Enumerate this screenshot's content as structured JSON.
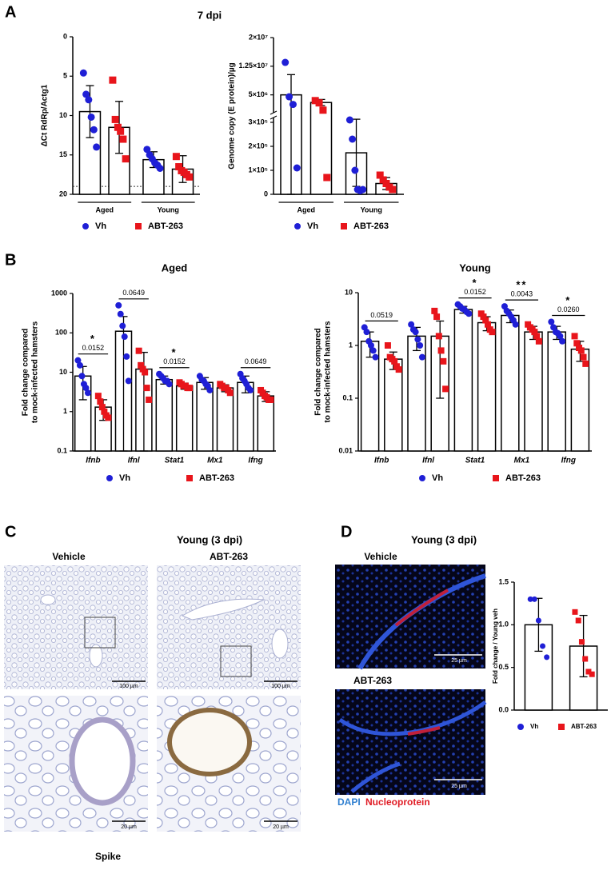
{
  "panels": {
    "A": {
      "label": "A",
      "title": "7 dpi"
    },
    "B": {
      "label": "B"
    },
    "C": {
      "label": "C",
      "title": "Young (3 dpi)",
      "columns": [
        "Vehicle",
        "ABT-263"
      ],
      "scale_bars": [
        "100 µm",
        "100 µm",
        "20 µm",
        "20 µm"
      ],
      "caption": "Spike"
    },
    "D": {
      "label": "D",
      "title": "Young (3 dpi)",
      "rows": [
        "Vehicle",
        "ABT-263"
      ],
      "scale_bars": [
        "25 µm",
        "25 µm"
      ],
      "stains": [
        "DAPI",
        "Nucleoprotein"
      ]
    }
  },
  "chart_data": [
    {
      "type": "bar",
      "ylabel": "ΔCt RdRp/Actg1",
      "categories": [
        "Aged",
        "Young"
      ],
      "category_style": "bracket",
      "ylim": [
        0,
        20
      ],
      "y_inverted": true,
      "yticks": [
        0,
        5,
        10,
        15,
        20
      ],
      "reference_line": 19,
      "series": [
        {
          "name": "Vh",
          "color": "#1f1fd6",
          "marker": "circle",
          "values": [
            9.5,
            15.6
          ],
          "errors": [
            3.3,
            1.0
          ],
          "points": [
            [
              4.6,
              7.3,
              8.0,
              10.2,
              11.8,
              14.0
            ],
            [
              14.3,
              15.0,
              15.5,
              16.0,
              16.3,
              16.7
            ]
          ]
        },
        {
          "name": "ABT-263",
          "color": "#e8151b",
          "marker": "square",
          "values": [
            11.5,
            16.8
          ],
          "errors": [
            3.3,
            1.7
          ],
          "points": [
            [
              5.5,
              10.5,
              11.5,
              12.0,
              13.0,
              15.5
            ],
            [
              15.2,
              16.5,
              17.0,
              17.2,
              17.5,
              17.8
            ]
          ]
        }
      ]
    },
    {
      "type": "bar",
      "ylabel": "Genome copy (E protein)/µg",
      "categories": [
        "Aged",
        "Young"
      ],
      "category_style": "bracket",
      "ylim": [
        0,
        20000000
      ],
      "y_break": 320000,
      "yticks": [
        0,
        {
          "value": 100000,
          "label": "1×10⁵"
        },
        {
          "value": 200000,
          "label": "2×10⁵"
        },
        {
          "value": 300000,
          "label": "3×10⁵"
        },
        {
          "value": 5000000,
          "label": "5×10⁶"
        },
        {
          "value": 12500000,
          "label": "1.25×10⁷"
        },
        {
          "value": 20000000,
          "label": "2×10⁷"
        }
      ],
      "series": [
        {
          "name": "Vh",
          "color": "#1f1fd6",
          "marker": "circle",
          "values": [
            5000000,
            173000
          ],
          "errors": [
            5300000,
            140000
          ],
          "points": [
            [
              13500000,
              4500000,
              2500000,
              110000
            ],
            [
              310000,
              230000,
              100000,
              20000,
              15000,
              20000
            ]
          ]
        },
        {
          "name": "ABT-263",
          "color": "#e8151b",
          "marker": "square",
          "values": [
            3000000,
            45000
          ],
          "errors": [
            800000,
            25000
          ],
          "points": [
            [
              3500000,
              2900000,
              1000000,
              70000
            ],
            [
              80000,
              60000,
              45000,
              30000,
              20000
            ]
          ]
        }
      ]
    },
    {
      "type": "bar",
      "title": "Aged",
      "ylabel": [
        "Fold change compared",
        "to mock-infected hamsters"
      ],
      "categories": [
        "Ifnb",
        "Ifnl",
        "Stat1",
        "Mx1",
        "Ifng"
      ],
      "category_style": "italic",
      "ylim": [
        0.1,
        1000
      ],
      "log_y": true,
      "yticks": [
        0.1,
        1,
        10,
        100,
        1000
      ],
      "p_values": [
        "0.0152",
        "0.0649",
        "0.0152",
        null,
        "0.0649"
      ],
      "significance": [
        "*",
        null,
        "*",
        null,
        null
      ],
      "series": [
        {
          "name": "Vh",
          "color": "#1f1fd6",
          "marker": "circle",
          "values": [
            8,
            110,
            6.5,
            5.5,
            5.5
          ],
          "errors": [
            6,
            150,
            1.5,
            1.8,
            2.5
          ],
          "points": [
            [
              20,
              15,
              8,
              5,
              4,
              3
            ],
            [
              500,
              300,
              150,
              80,
              25,
              6
            ],
            [
              9,
              8,
              7,
              6,
              6,
              5
            ],
            [
              8,
              6.5,
              6,
              5,
              4.5,
              3.5
            ],
            [
              9,
              7,
              6,
              5,
              4,
              3.5
            ]
          ]
        },
        {
          "name": "ABT-263",
          "color": "#e8151b",
          "marker": "square",
          "values": [
            1.3,
            12,
            4.5,
            4,
            2.5
          ],
          "errors": [
            0.7,
            20,
            0.8,
            0.8,
            0.7
          ],
          "points": [
            [
              2.5,
              1.8,
              1.3,
              1.0,
              0.8,
              0.7
            ],
            [
              35,
              15,
              12,
              10,
              4,
              2
            ],
            [
              5.5,
              5,
              4.5,
              4.5,
              4,
              4
            ],
            [
              5,
              4.5,
              4,
              4,
              3.5,
              3
            ],
            [
              3.5,
              3,
              2.5,
              2.3,
              2,
              2
            ]
          ]
        }
      ]
    },
    {
      "type": "bar",
      "title": "Young",
      "ylabel": [
        "Fold change compared",
        "to mock-infected hamsters"
      ],
      "categories": [
        "Ifnb",
        "Ifnl",
        "Stat1",
        "Mx1",
        "Ifng"
      ],
      "category_style": "italic",
      "ylim": [
        0.01,
        10
      ],
      "log_y": true,
      "yticks": [
        0.01,
        0.1,
        1,
        10
      ],
      "p_values": [
        "0.0519",
        null,
        "0.0152",
        "0.0043",
        "0.0260"
      ],
      "significance": [
        null,
        null,
        "*",
        "**",
        "*"
      ],
      "series": [
        {
          "name": "Vh",
          "color": "#1f1fd6",
          "marker": "circle",
          "values": [
            1.2,
            1.5,
            4.8,
            3.7,
            1.8
          ],
          "errors": [
            0.6,
            0.7,
            0.7,
            1.0,
            0.5
          ],
          "points": [
            [
              2.2,
              1.8,
              1.2,
              1.0,
              0.8,
              0.6
            ],
            [
              2.5,
              2.0,
              1.8,
              1.3,
              1.0,
              0.6
            ],
            [
              6,
              5.5,
              5,
              4.8,
              4.3,
              4
            ],
            [
              5.5,
              4.5,
              4,
              3.5,
              3,
              2.5
            ],
            [
              2.8,
              2.2,
              1.8,
              1.7,
              1.5,
              1.2
            ]
          ]
        },
        {
          "name": "ABT-263",
          "color": "#e8151b",
          "marker": "square",
          "values": [
            0.55,
            1.5,
            2.7,
            1.8,
            0.85
          ],
          "errors": [
            0.2,
            1.4,
            0.8,
            0.5,
            0.35
          ],
          "points": [
            [
              1.0,
              0.6,
              0.55,
              0.5,
              0.4,
              0.35
            ],
            [
              4.5,
              3.5,
              1.5,
              0.8,
              0.5,
              0.15
            ],
            [
              4,
              3.5,
              3,
              2.5,
              2,
              1.8
            ],
            [
              2.5,
              2.2,
              2,
              1.8,
              1.5,
              1.2
            ],
            [
              1.5,
              1.1,
              0.9,
              0.8,
              0.6,
              0.45
            ]
          ]
        }
      ]
    },
    {
      "type": "bar",
      "ylabel": "Fold change / Young veh",
      "categories": [
        null
      ],
      "ylim": [
        0,
        1.5
      ],
      "yticks": [
        {
          "value": 0,
          "label": "0.0"
        },
        0.5,
        {
          "value": 1,
          "label": "1.0"
        },
        {
          "value": 1.5,
          "label": "1.5"
        }
      ],
      "series": [
        {
          "name": "Vh",
          "color": "#1f1fd6",
          "marker": "circle",
          "values": [
            1.0
          ],
          "errors": [
            0.31
          ],
          "points": [
            [
              1.3,
              1.3,
              1.05,
              0.75,
              0.62
            ]
          ]
        },
        {
          "name": "ABT-263",
          "color": "#e8151b",
          "marker": "square",
          "values": [
            0.75
          ],
          "errors": [
            0.36
          ],
          "points": [
            [
              1.15,
              1.05,
              0.8,
              0.6,
              0.45,
              0.42
            ]
          ]
        }
      ]
    }
  ]
}
